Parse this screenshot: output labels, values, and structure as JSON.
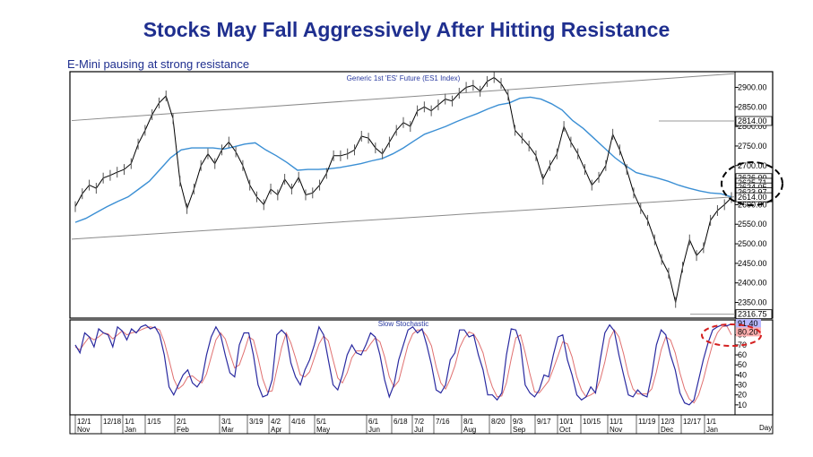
{
  "title": "Stocks May Fall Aggressively After Hitting Resistance",
  "subtitle": "E-Mini pausing at strong resistance",
  "colors": {
    "title": "#1f2f8f",
    "price": "#000000",
    "ma": "#3b8fd4",
    "stoch_k": "#2a2aa0",
    "stoch_d": "#e07070",
    "channel": "#8a8a8a"
  },
  "chart_data": [
    {
      "type": "line",
      "title": "Generic 1st 'ES' Future (ES1 Index)",
      "y_ticks": [
        2900,
        2850,
        2800,
        2750,
        2700,
        2650,
        2600,
        2550,
        2500,
        2450,
        2400,
        2350
      ],
      "ylim": [
        2310,
        2940
      ],
      "price_labels": [
        "2814.00",
        "2626.00",
        "2625.71",
        "2624.05",
        "2623.97",
        "2614.00",
        "2316.75"
      ],
      "x_ticks": [
        "12/1",
        "12/18",
        "1/1",
        "1/15",
        "2/1",
        "3/1",
        "3/19",
        "4/2",
        "4/16",
        "5/1",
        "6/1",
        "6/18",
        "7/2",
        "7/16",
        "8/1",
        "8/20",
        "9/3",
        "9/17",
        "10/1",
        "10/15",
        "11/1",
        "11/19",
        "12/3",
        "12/17",
        "1/1"
      ],
      "month_labels": [
        "Nov",
        "Jan",
        "Feb",
        "Mar",
        "Apr",
        "May",
        "Jun",
        "Jul",
        "Aug",
        "Sep",
        "Oct",
        "Nov",
        "Dec",
        "Jan"
      ],
      "x_axis_label": "Day",
      "series": [
        {
          "type": "line",
          "values": [
            2595,
            2628,
            2650,
            2642,
            2668,
            2675,
            2683,
            2690,
            2705,
            2755,
            2790,
            2830,
            2860,
            2878,
            2820,
            2660,
            2590,
            2640,
            2700,
            2730,
            2705,
            2740,
            2760,
            2735,
            2700,
            2650,
            2620,
            2600,
            2640,
            2625,
            2665,
            2640,
            2670,
            2625,
            2630,
            2650,
            2680,
            2725,
            2725,
            2730,
            2740,
            2775,
            2770,
            2745,
            2730,
            2760,
            2790,
            2810,
            2800,
            2840,
            2850,
            2840,
            2855,
            2870,
            2865,
            2885,
            2900,
            2905,
            2890,
            2915,
            2925,
            2910,
            2880,
            2790,
            2770,
            2750,
            2725,
            2665,
            2700,
            2730,
            2800,
            2760,
            2730,
            2690,
            2650,
            2670,
            2700,
            2780,
            2740,
            2690,
            2630,
            2590,
            2560,
            2510,
            2460,
            2425,
            2350,
            2440,
            2510,
            2470,
            2490,
            2560,
            2585,
            2600,
            2618
          ]
        },
        {
          "type": "line",
          "values": [
            2555,
            2565,
            2580,
            2595,
            2608,
            2620,
            2640,
            2660,
            2690,
            2720,
            2740,
            2745,
            2745,
            2745,
            2742,
            2748,
            2755,
            2758,
            2740,
            2725,
            2708,
            2688,
            2690,
            2690,
            2692,
            2695,
            2700,
            2705,
            2712,
            2718,
            2730,
            2745,
            2763,
            2780,
            2790,
            2800,
            2812,
            2823,
            2833,
            2845,
            2855,
            2860,
            2872,
            2875,
            2870,
            2858,
            2842,
            2815,
            2795,
            2770,
            2745,
            2720,
            2700,
            2682,
            2675,
            2668,
            2660,
            2650,
            2642,
            2635,
            2630,
            2628,
            2620
          ]
        }
      ],
      "channel_lines": [
        {
          "from": [
            0,
            2815
          ],
          "to": [
            1,
            2935
          ]
        },
        {
          "from": [
            0,
            2512
          ],
          "to": [
            1,
            2620
          ]
        }
      ]
    },
    {
      "type": "line",
      "title": "Slow Stochastic",
      "y_ticks": [
        80,
        70,
        60,
        50,
        40,
        30,
        20,
        10
      ],
      "ylim": [
        0,
        95
      ],
      "value_labels": [
        "91.40",
        "80.20"
      ],
      "series": [
        {
          "type": "line",
          "values": [
            70,
            62,
            82,
            78,
            68,
            86,
            82,
            80,
            68,
            88,
            84,
            75,
            86,
            82,
            88,
            90,
            86,
            88,
            80,
            60,
            28,
            20,
            30,
            40,
            45,
            32,
            28,
            35,
            60,
            78,
            88,
            80,
            60,
            42,
            38,
            70,
            82,
            82,
            60,
            30,
            18,
            20,
            35,
            80,
            85,
            80,
            52,
            38,
            30,
            45,
            55,
            70,
            88,
            80,
            55,
            30,
            25,
            40,
            60,
            70,
            62,
            60,
            70,
            82,
            78,
            60,
            35,
            18,
            30,
            55,
            70,
            85,
            88,
            82,
            86,
            70,
            50,
            25,
            22,
            30,
            55,
            62,
            85,
            85,
            78,
            80,
            60,
            45,
            20,
            20,
            15,
            22,
            60,
            86,
            85,
            70,
            30,
            22,
            18,
            25,
            40,
            38,
            60,
            78,
            80,
            55,
            40,
            20,
            15,
            18,
            28,
            22,
            55,
            82,
            90,
            84,
            60,
            40,
            20,
            18,
            25,
            20,
            18,
            40,
            70,
            85,
            80,
            60,
            45,
            22,
            12,
            10,
            15,
            35,
            55,
            72,
            85,
            88,
            90,
            89,
            91
          ]
        },
        {
          "type": "line",
          "values": [
            68,
            65,
            72,
            78,
            75,
            78,
            82,
            81,
            76,
            80,
            84,
            80,
            82,
            83,
            85,
            87,
            88,
            87,
            85,
            73,
            55,
            36,
            26,
            30,
            38,
            39,
            35,
            32,
            41,
            58,
            75,
            82,
            76,
            61,
            47,
            50,
            63,
            78,
            75,
            57,
            36,
            23,
            24,
            45,
            67,
            82,
            72,
            57,
            40,
            38,
            43,
            57,
            71,
            79,
            74,
            55,
            37,
            32,
            42,
            57,
            64,
            64,
            64,
            71,
            77,
            73,
            58,
            38,
            28,
            34,
            52,
            70,
            81,
            85,
            85,
            79,
            69,
            48,
            32,
            26,
            36,
            49,
            67,
            77,
            83,
            81,
            73,
            62,
            42,
            28,
            18,
            19,
            32,
            56,
            77,
            80,
            62,
            41,
            23,
            22,
            28,
            34,
            46,
            59,
            73,
            71,
            58,
            38,
            25,
            18,
            20,
            23,
            35,
            53,
            76,
            85,
            78,
            61,
            40,
            26,
            21,
            21,
            21,
            26,
            43,
            65,
            78,
            75,
            62,
            42,
            26,
            16,
            12,
            20,
            35,
            54,
            71,
            82,
            88,
            89,
            80
          ]
        }
      ]
    }
  ]
}
